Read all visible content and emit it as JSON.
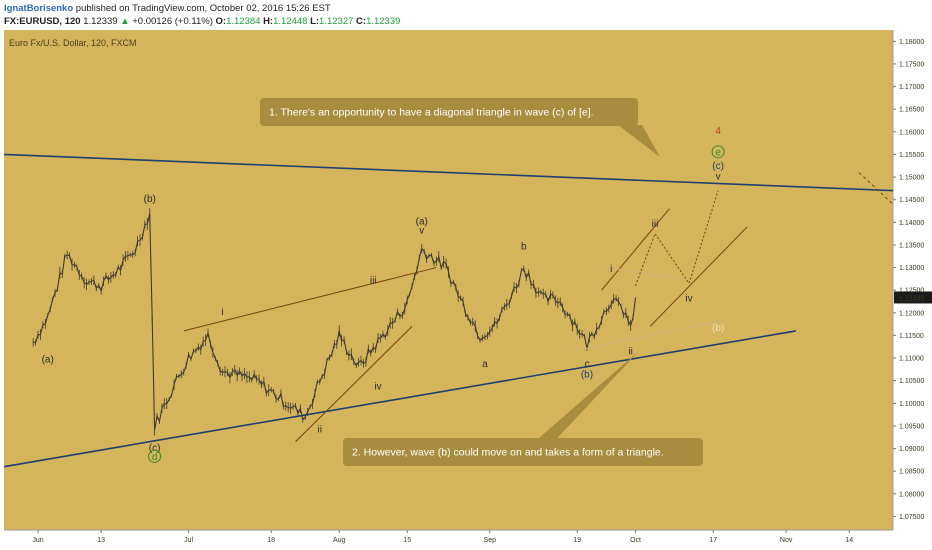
{
  "header": {
    "author": "IgnatBorisenko",
    "published": "published on TradingView.com, October 02, 2016 15:26 EST",
    "symbol": "FX:EURUSD, 120",
    "last": "1.12339",
    "change_arrow": "▲",
    "change": "+0.00126 (+0.11%)",
    "open_label": "O:",
    "open": "1.12384",
    "high_label": "H:",
    "high": "1.12448",
    "low_label": "L:",
    "low": "1.12327",
    "close_label": "C:",
    "close": "1.12339"
  },
  "colors": {
    "background": "#d5b55c",
    "candles": "#3d3a32",
    "trendline": "#1d3f6e",
    "channel": "#7a4410",
    "callout": "#a88d3e",
    "price_tag": "#1b1b1b",
    "accent_red": "#c0391b",
    "accent_green": "#3c8a30"
  },
  "chart_data": {
    "type": "candlestick",
    "title": "Euro Fx/U.S. Dollar, 120, FXCM",
    "instrument": "EURUSD",
    "timeframe": "120",
    "ylim": [
      1.072,
      1.1825
    ],
    "y_ticks": [
      "1.18000",
      "1.17500",
      "1.17000",
      "1.16500",
      "1.16000",
      "1.15500",
      "1.15000",
      "1.14500",
      "1.14000",
      "1.13500",
      "1.13000",
      "1.12500",
      "1.12000",
      "1.11500",
      "1.11000",
      "1.10500",
      "1.10000",
      "1.09500",
      "1.09000",
      "1.08500",
      "1.08000",
      "1.07500"
    ],
    "x_ticks": [
      "Jun",
      "13",
      "Jul",
      "18",
      "Aug",
      "15",
      "Sep",
      "19",
      "Oct",
      "17",
      "Nov",
      "14"
    ],
    "last_price": "1.12339",
    "series": [
      {
        "date": "2016-05-30",
        "close": 1.1135
      },
      {
        "date": "2016-06-02",
        "close": 1.119
      },
      {
        "date": "2016-06-06",
        "close": 1.133
      },
      {
        "date": "2016-06-10",
        "close": 1.127
      },
      {
        "date": "2016-06-13",
        "close": 1.126
      },
      {
        "date": "2016-06-17",
        "close": 1.13
      },
      {
        "date": "2016-06-20",
        "close": 1.134
      },
      {
        "date": "2016-06-23",
        "close": 1.142
      },
      {
        "date": "2016-06-24",
        "close": 1.095
      },
      {
        "date": "2016-06-28",
        "close": 1.104
      },
      {
        "date": "2016-07-01",
        "close": 1.11
      },
      {
        "date": "2016-07-05",
        "close": 1.115
      },
      {
        "date": "2016-07-08",
        "close": 1.107
      },
      {
        "date": "2016-07-12",
        "close": 1.106
      },
      {
        "date": "2016-07-15",
        "close": 1.105
      },
      {
        "date": "2016-07-20",
        "close": 1.101
      },
      {
        "date": "2016-07-25",
        "close": 1.097
      },
      {
        "date": "2016-07-28",
        "close": 1.105
      },
      {
        "date": "2016-08-01",
        "close": 1.115
      },
      {
        "date": "2016-08-05",
        "close": 1.108
      },
      {
        "date": "2016-08-10",
        "close": 1.115
      },
      {
        "date": "2016-08-15",
        "close": 1.122
      },
      {
        "date": "2016-08-18",
        "close": 1.134
      },
      {
        "date": "2016-08-23",
        "close": 1.13
      },
      {
        "date": "2016-08-26",
        "close": 1.123
      },
      {
        "date": "2016-08-30",
        "close": 1.115
      },
      {
        "date": "2016-09-02",
        "close": 1.117
      },
      {
        "date": "2016-09-06",
        "close": 1.125
      },
      {
        "date": "2016-09-08",
        "close": 1.13
      },
      {
        "date": "2016-09-12",
        "close": 1.123
      },
      {
        "date": "2016-09-15",
        "close": 1.123
      },
      {
        "date": "2016-09-19",
        "close": 1.117
      },
      {
        "date": "2016-09-21",
        "close": 1.113
      },
      {
        "date": "2016-09-26",
        "close": 1.123
      },
      {
        "date": "2016-09-29",
        "close": 1.12
      },
      {
        "date": "2016-09-30",
        "close": 1.116
      },
      {
        "date": "2016-10-01",
        "close": 1.1234
      }
    ],
    "annotations": [
      {
        "text": "1. There's an opportunity to have a diagonal triangle in wave (c) of [e].",
        "kind": "callout"
      },
      {
        "text": "2. However, wave (b) could move on and takes a form of a triangle.",
        "kind": "callout"
      }
    ],
    "wave_labels": [
      {
        "text": "(a)",
        "date": "2016-06-02",
        "price": 1.109
      },
      {
        "text": "(b)",
        "date": "2016-06-23",
        "price": 1.1445
      },
      {
        "text": "(c)",
        "date": "2016-06-24",
        "price": 1.0895
      },
      {
        "text": "d",
        "date": "2016-06-24",
        "price": 1.0875
      },
      {
        "text": "i",
        "date": "2016-07-08",
        "price": 1.1195
      },
      {
        "text": "ii",
        "date": "2016-07-28",
        "price": 1.0935
      },
      {
        "text": "iii",
        "date": "2016-08-08",
        "price": 1.1265
      },
      {
        "text": "iv",
        "date": "2016-08-09",
        "price": 1.103
      },
      {
        "text": "(a)",
        "date": "2016-08-18",
        "price": 1.1395
      },
      {
        "text": "v",
        "date": "2016-08-18",
        "price": 1.1375
      },
      {
        "text": "a",
        "date": "2016-08-31",
        "price": 1.108
      },
      {
        "text": "b",
        "date": "2016-09-08",
        "price": 1.134
      },
      {
        "text": "c",
        "date": "2016-09-21",
        "price": 1.108
      },
      {
        "text": "(b)",
        "date": "2016-09-21",
        "price": 1.1057
      },
      {
        "text": "i",
        "date": "2016-09-26",
        "price": 1.129
      },
      {
        "text": "ii",
        "date": "2016-09-30",
        "price": 1.1108
      },
      {
        "text": "iii",
        "date": "2016-10-05",
        "price": 1.139
      },
      {
        "text": "iv",
        "date": "2016-10-12",
        "price": 1.1225
      },
      {
        "text": "v",
        "date": "2016-10-18",
        "price": 1.1495
      },
      {
        "text": "(c)",
        "date": "2016-10-18",
        "price": 1.1518
      },
      {
        "text": "e",
        "date": "2016-10-18",
        "price": 1.1548
      },
      {
        "text": "4",
        "date": "2016-10-18",
        "price": 1.1595
      },
      {
        "text": "(b)",
        "date": "2016-10-18",
        "price": 1.116
      }
    ]
  }
}
